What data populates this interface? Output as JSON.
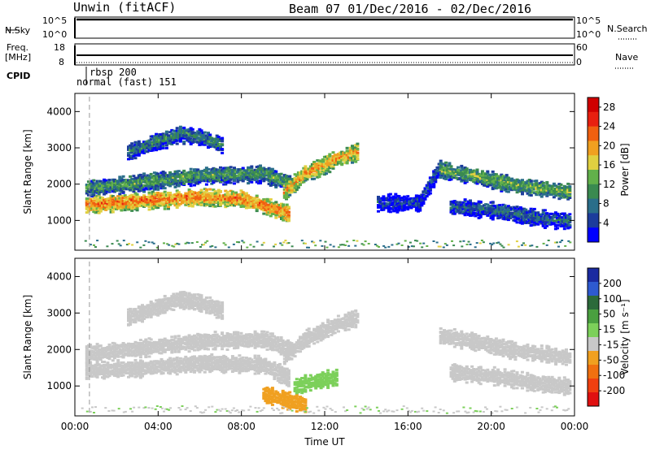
{
  "header": {
    "station": "Unwin (fitACF)",
    "beam_and_dates": "Beam 07  01/Dec/2016 - 02/Dec/2016"
  },
  "summary_panels": {
    "nsky_label": "N.Sky",
    "nsky_ticks": [
      "10^5",
      "10^0"
    ],
    "nsearch_ticks": [
      "10^5",
      "10^0"
    ],
    "nsearch_label": "N.Search",
    "freq_label_line1": "Freq.",
    "freq_label_line2": "[MHz]",
    "freq_ticks": [
      "18",
      "8"
    ],
    "nave_ticks": [
      "60",
      "0"
    ],
    "nave_label": "Nave",
    "cpid_label": "CPID",
    "cpid_entries": [
      "rbsp 200",
      "normal (fast) 151"
    ]
  },
  "colors": {
    "power_scale": [
      "#0000ff",
      "#1c3c9c",
      "#2a6e8a",
      "#3a8a50",
      "#62b04a",
      "#e0d040",
      "#f0a020",
      "#f06010",
      "#e82010",
      "#d00000"
    ],
    "velocity_scale": [
      "#1a2aa0",
      "#2e5ad0",
      "#2c6a3a",
      "#4aa040",
      "#7cd05a",
      "#c8c8c8",
      "#f0a020",
      "#f07010",
      "#f04010",
      "#e01010"
    ],
    "ground_scatter": "#c8c8c8"
  },
  "chart_data": [
    {
      "type": "heatmap",
      "name": "power",
      "ylabel": "Slant Range [km]",
      "xlabel": "Time UT",
      "ylim": [
        180,
        4500
      ],
      "xlim_hours": [
        0,
        24
      ],
      "yticks": [
        "1000",
        "2000",
        "3000",
        "4000"
      ],
      "xticks": [
        "00:00",
        "04:00",
        "08:00",
        "12:00",
        "16:00",
        "20:00",
        "00:00"
      ],
      "colorbar_label": "Power [dB]",
      "colorbar_ticks": [
        "4",
        "8",
        "12",
        "16",
        "20",
        "24",
        "28"
      ],
      "colorbar_range": [
        0,
        30
      ],
      "features": [
        {
          "t": [
            0.5,
            2,
            4,
            6,
            8,
            9.5,
            10.2
          ],
          "r": [
            1450,
            1500,
            1580,
            1650,
            1600,
            1350,
            1200
          ],
          "level": 22
        },
        {
          "t": [
            0.5,
            3,
            6,
            9,
            10.5
          ],
          "r": [
            1900,
            2050,
            2250,
            2300,
            2000
          ],
          "level": 12
        },
        {
          "t": [
            2.5,
            4,
            5,
            6,
            7
          ],
          "r": [
            2900,
            3200,
            3400,
            3300,
            3100
          ],
          "level": 10
        },
        {
          "t": [
            10,
            11,
            12.5,
            13.5
          ],
          "r": [
            1800,
            2300,
            2700,
            2900
          ],
          "level": 20
        },
        {
          "t": [
            14.5,
            16.5,
            17.5
          ],
          "r": [
            1500,
            1500,
            2500
          ],
          "level": 6
        },
        {
          "t": [
            17.5,
            19,
            21,
            23.7
          ],
          "r": [
            2400,
            2250,
            2000,
            1800
          ],
          "level": 14
        },
        {
          "t": [
            18,
            20,
            22,
            23.7
          ],
          "r": [
            1400,
            1300,
            1100,
            1000
          ],
          "level": 8
        }
      ]
    },
    {
      "type": "heatmap",
      "name": "velocity",
      "ylabel": "Slant Range [km]",
      "xlabel": "Time UT",
      "ylim": [
        180,
        4500
      ],
      "xlim_hours": [
        0,
        24
      ],
      "yticks": [
        "1000",
        "2000",
        "3000",
        "4000"
      ],
      "xticks": [
        "00:00",
        "04:00",
        "08:00",
        "12:00",
        "16:00",
        "20:00",
        "00:00"
      ],
      "colorbar_label": "Velocity [m s⁻¹]",
      "colorbar_ticks": [
        "200",
        "100",
        "50",
        "15",
        "-15",
        "-50",
        "-100",
        "-200"
      ],
      "colorbar_range": [
        -250,
        250
      ],
      "features": [
        {
          "t": [
            0.5,
            3,
            6,
            9,
            10.2
          ],
          "r": [
            1450,
            1500,
            1650,
            1600,
            1250
          ],
          "level": 0
        },
        {
          "t": [
            0.5,
            3,
            6,
            9,
            10.5
          ],
          "r": [
            1900,
            2050,
            2250,
            2300,
            2000
          ],
          "level": 0
        },
        {
          "t": [
            2.5,
            4,
            5,
            6,
            7
          ],
          "r": [
            2900,
            3200,
            3400,
            3300,
            3100
          ],
          "level": 0
        },
        {
          "t": [
            10,
            11,
            12.5,
            13.5
          ],
          "r": [
            1800,
            2300,
            2700,
            2900
          ],
          "level": 0
        },
        {
          "t": [
            10.5,
            11.5,
            12.5
          ],
          "r": [
            1000,
            1150,
            1250
          ],
          "level": 40
        },
        {
          "t": [
            9,
            10,
            11
          ],
          "r": [
            800,
            650,
            500
          ],
          "level": -60
        },
        {
          "t": [
            17.5,
            19,
            21,
            23.7
          ],
          "r": [
            2400,
            2250,
            2000,
            1800
          ],
          "level": 0
        },
        {
          "t": [
            18,
            20,
            22,
            23.7
          ],
          "r": [
            1400,
            1300,
            1100,
            1000
          ],
          "level": -10
        }
      ]
    }
  ]
}
